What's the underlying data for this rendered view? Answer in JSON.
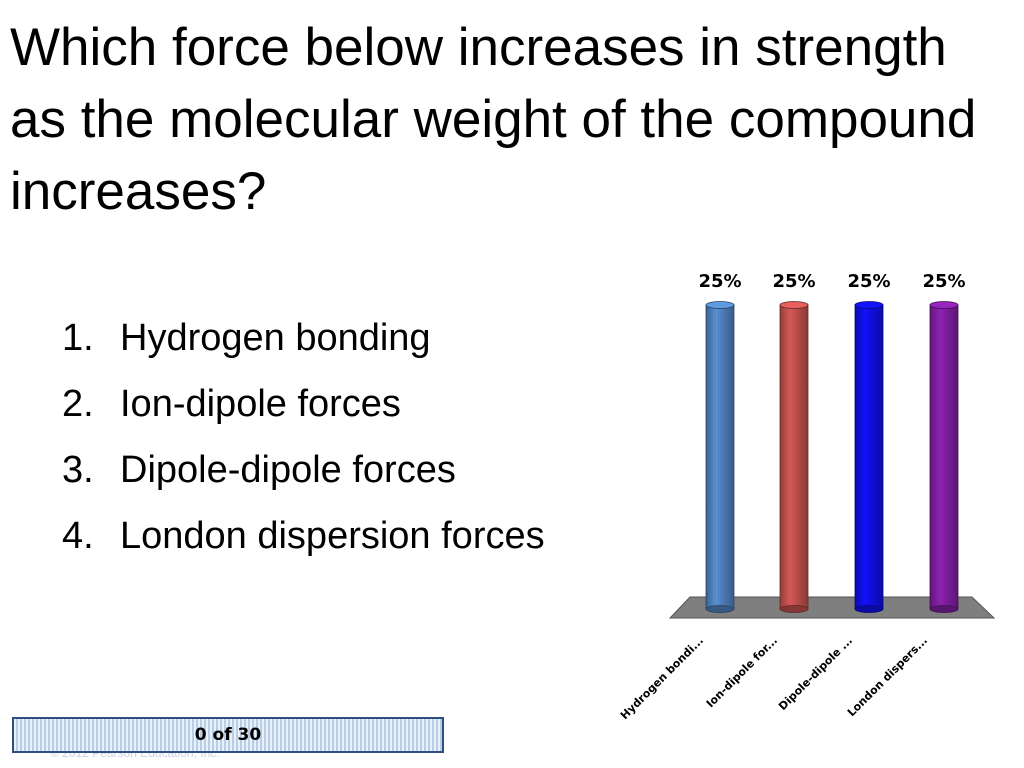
{
  "question": "Which force below increases in strength as the molecular weight of the compound increases?",
  "options": [
    {
      "number": "1.",
      "label": "Hydrogen bonding"
    },
    {
      "number": "2.",
      "label": "Ion-dipole forces"
    },
    {
      "number": "3.",
      "label": "Dipole-dipole forces"
    },
    {
      "number": "4.",
      "label": "London dispersion forces"
    }
  ],
  "chart_data": {
    "type": "bar",
    "categories": [
      "Hydrogen bondi...",
      "Ion-dipole for...",
      "Dipole-dipole ...",
      "London dispers..."
    ],
    "values": [
      25,
      25,
      25,
      25
    ],
    "value_labels": [
      "25%",
      "25%",
      "25%",
      "25%"
    ],
    "ylim": [
      0,
      25
    ],
    "colors": [
      "#4f81bd",
      "#c0504d",
      "#1010e8",
      "#7f1f9f"
    ],
    "grid": false
  },
  "counter": {
    "label": "0 of 30"
  },
  "copyright": "© 2012 Pearson Education, Inc."
}
